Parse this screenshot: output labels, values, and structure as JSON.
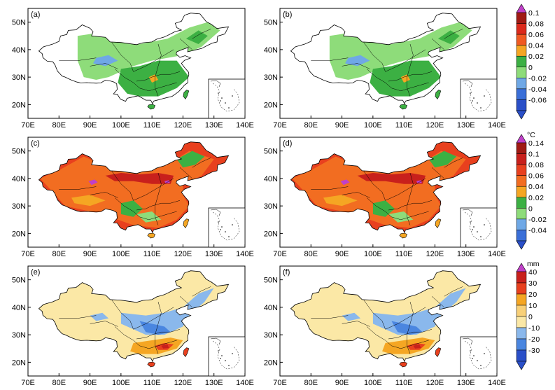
{
  "figure": {
    "x_tick_labels": [
      "70E",
      "80E",
      "90E",
      "100E",
      "110E",
      "120E",
      "130E",
      "140E"
    ],
    "y_tick_labels": [
      "20N",
      "30N",
      "40N",
      "50N"
    ],
    "panels": [
      {
        "label": "(a)",
        "field": "trend_small"
      },
      {
        "label": "(b)",
        "field": "trend_small"
      },
      {
        "label": "(c)",
        "field": "temperature"
      },
      {
        "label": "(d)",
        "field": "temperature"
      },
      {
        "label": "(e)",
        "field": "precipitation"
      },
      {
        "label": "(f)",
        "field": "precipitation"
      }
    ],
    "colorbars": [
      {
        "unit": "",
        "labels": [
          "0.1",
          "0.08",
          "0.06",
          "0.04",
          "0.02",
          "0",
          "-0.02",
          "-0.04",
          "-0.06"
        ],
        "colors": [
          "#a01a14",
          "#dc2a1c",
          "#f05a22",
          "#f5a623",
          "#3cb043",
          "#8edc7a",
          "#6fa8e6",
          "#3a6fd8",
          "#2a4fc8"
        ],
        "top_color": "#c040c8",
        "bottom_color": "#2a4fc8"
      },
      {
        "unit": "°C",
        "labels": [
          "0.14",
          "0.1",
          "0.08",
          "0.06",
          "0.04",
          "0.02",
          "0",
          "-0.02",
          "-0.04"
        ],
        "colors": [
          "#a01a14",
          "#c8201c",
          "#e8401e",
          "#f26d21",
          "#f5a623",
          "#3cb043",
          "#8edc7a",
          "#6fa8e6",
          "#3a6fd8"
        ],
        "top_color": "#c040c8",
        "bottom_color": "#2a4fc8"
      },
      {
        "unit": "mm",
        "labels": [
          "40",
          "30",
          "20",
          "10",
          "0",
          "-10",
          "-20",
          "-30"
        ],
        "colors": [
          "#c8201c",
          "#e8401e",
          "#f5a623",
          "#f8d078",
          "#fbe8a6",
          "#8ab8ec",
          "#4a86e0",
          "#2a4fc8"
        ],
        "top_color": "#c040c8",
        "bottom_color": "#2a4fc8"
      }
    ],
    "legend_colors": {
      "land_outline": "#000000",
      "axes": "#000000"
    }
  }
}
